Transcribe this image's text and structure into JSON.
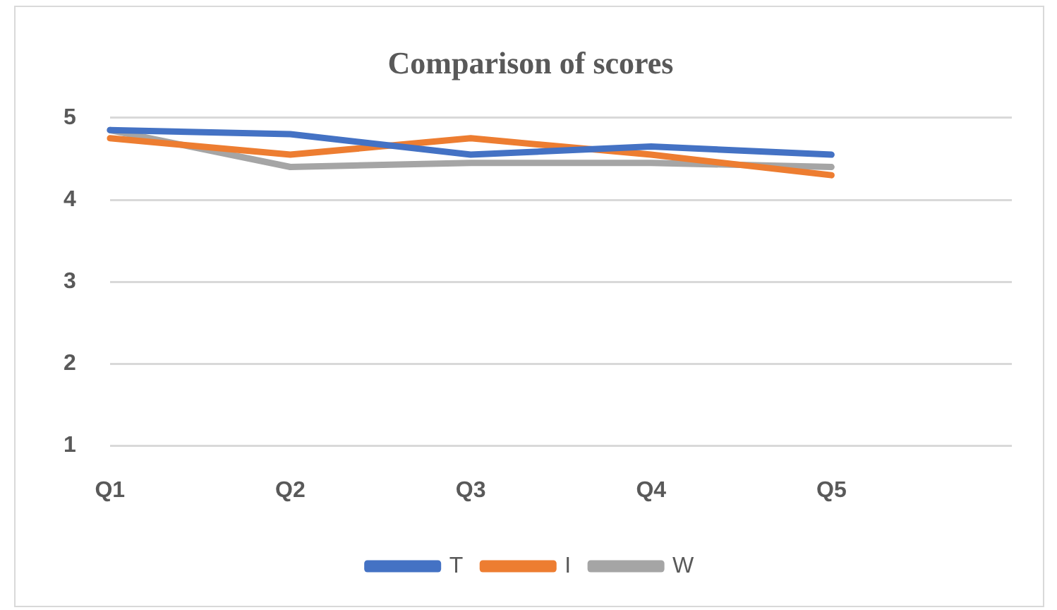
{
  "chart_data": {
    "type": "line",
    "title": "Comparison of scores",
    "categories": [
      "Q1",
      "Q2",
      "Q3",
      "Q4",
      "Q5",
      null
    ],
    "series": [
      {
        "name": "T",
        "color": "#4472c4",
        "values": [
          4.85,
          4.8,
          4.55,
          4.65,
          4.55,
          null
        ]
      },
      {
        "name": "I",
        "color": "#ed7d31",
        "values": [
          4.75,
          4.55,
          4.75,
          4.55,
          4.3,
          null
        ]
      },
      {
        "name": "W",
        "color": "#a5a5a5",
        "values": [
          4.85,
          4.4,
          4.45,
          4.45,
          4.4,
          null
        ]
      }
    ],
    "ylim": [
      1,
      5
    ],
    "yticks": [
      1,
      2,
      3,
      4,
      5
    ],
    "grid": "y",
    "legend": "bottom",
    "marker": "none",
    "line_style": "solid"
  }
}
